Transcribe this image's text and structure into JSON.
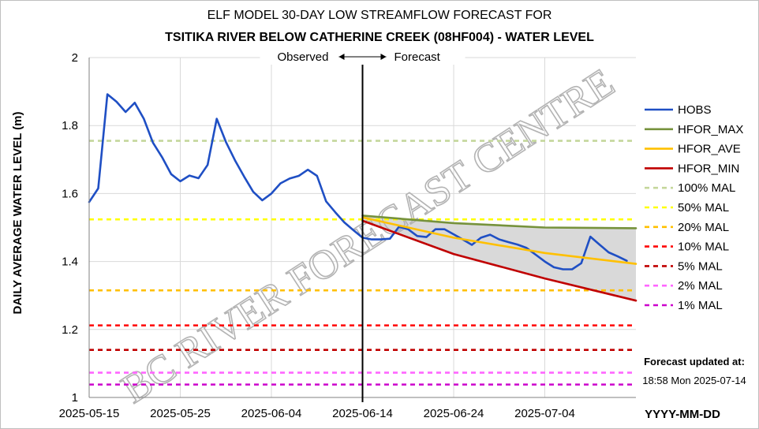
{
  "chart_data": {
    "type": "line",
    "title": "ELF MODEL 30-DAY LOW STREAMFLOW FORECAST FOR",
    "subtitle": "TSITIKA RIVER BELOW CATHERINE CREEK (08HF004) - WATER LEVEL",
    "ylabel": "DAILY AVERAGE WATER LEVEL (m)",
    "xlabel": "YYYY-MM-DD",
    "ylim": [
      1,
      2
    ],
    "yticks": [
      "1",
      "1.2",
      "1.4",
      "1.6",
      "1.8",
      "2"
    ],
    "x_range": [
      "2025-05-15",
      "2025-07-14"
    ],
    "xticks": [
      "2025-05-15",
      "2025-05-25",
      "2025-06-04",
      "2025-06-14",
      "2025-06-24",
      "2025-07-04"
    ],
    "grid": true,
    "legend_position": "right",
    "divider": {
      "date": "2025-06-14",
      "left_label": "Observed",
      "right_label": "Forecast"
    },
    "forecast_note": {
      "label": "Forecast updated at:",
      "time": "18:58 Mon 2025-07-14"
    },
    "watermark": "BC RIVER FORECAST CENTRE",
    "band": {
      "between": [
        "HFOR_MAX",
        "HFOR_MIN"
      ],
      "color": "#d9d9d9"
    },
    "series": [
      {
        "name": "HOBS",
        "color": "#1f4fc4",
        "dash": false,
        "width": 2.6,
        "points": [
          [
            "2025-05-15",
            1.575
          ],
          [
            "2025-05-16",
            1.615
          ],
          [
            "2025-05-17",
            1.892
          ],
          [
            "2025-05-18",
            1.87
          ],
          [
            "2025-05-19",
            1.84
          ],
          [
            "2025-05-20",
            1.867
          ],
          [
            "2025-05-21",
            1.82
          ],
          [
            "2025-05-22",
            1.75
          ],
          [
            "2025-05-23",
            1.707
          ],
          [
            "2025-05-24",
            1.657
          ],
          [
            "2025-05-25",
            1.636
          ],
          [
            "2025-05-26",
            1.653
          ],
          [
            "2025-05-27",
            1.645
          ],
          [
            "2025-05-28",
            1.684
          ],
          [
            "2025-05-29",
            1.82
          ],
          [
            "2025-05-30",
            1.752
          ],
          [
            "2025-05-31",
            1.698
          ],
          [
            "2025-06-01",
            1.65
          ],
          [
            "2025-06-02",
            1.605
          ],
          [
            "2025-06-03",
            1.58
          ],
          [
            "2025-06-04",
            1.6
          ],
          [
            "2025-06-05",
            1.63
          ],
          [
            "2025-06-06",
            1.644
          ],
          [
            "2025-06-07",
            1.652
          ],
          [
            "2025-06-08",
            1.67
          ],
          [
            "2025-06-09",
            1.652
          ],
          [
            "2025-06-10",
            1.577
          ],
          [
            "2025-06-11",
            1.545
          ],
          [
            "2025-06-12",
            1.515
          ],
          [
            "2025-06-13",
            1.492
          ],
          [
            "2025-06-14",
            1.47
          ],
          [
            "2025-06-15",
            1.465
          ],
          [
            "2025-06-16",
            1.465
          ],
          [
            "2025-06-17",
            1.467
          ],
          [
            "2025-06-18",
            1.502
          ],
          [
            "2025-06-19",
            1.495
          ],
          [
            "2025-06-20",
            1.475
          ],
          [
            "2025-06-21",
            1.472
          ],
          [
            "2025-06-22",
            1.495
          ],
          [
            "2025-06-23",
            1.495
          ],
          [
            "2025-06-24",
            1.48
          ],
          [
            "2025-06-25",
            1.465
          ],
          [
            "2025-06-26",
            1.449
          ],
          [
            "2025-06-27",
            1.47
          ],
          [
            "2025-06-28",
            1.479
          ],
          [
            "2025-06-29",
            1.465
          ],
          [
            "2025-06-30",
            1.457
          ],
          [
            "2025-07-01",
            1.45
          ],
          [
            "2025-07-02",
            1.44
          ],
          [
            "2025-07-03",
            1.42
          ],
          [
            "2025-07-04",
            1.4
          ],
          [
            "2025-07-05",
            1.383
          ],
          [
            "2025-07-06",
            1.377
          ],
          [
            "2025-07-07",
            1.377
          ],
          [
            "2025-07-08",
            1.395
          ],
          [
            "2025-07-09",
            1.473
          ],
          [
            "2025-07-10",
            1.45
          ],
          [
            "2025-07-11",
            1.427
          ],
          [
            "2025-07-12",
            1.415
          ],
          [
            "2025-07-13",
            1.402
          ]
        ]
      },
      {
        "name": "HFOR_MAX",
        "color": "#76923c",
        "dash": false,
        "width": 2.6,
        "points": [
          [
            "2025-06-14",
            1.535
          ],
          [
            "2025-06-24",
            1.513
          ],
          [
            "2025-07-04",
            1.5
          ],
          [
            "2025-07-14",
            1.498
          ]
        ]
      },
      {
        "name": "HFOR_AVE",
        "color": "#ffc000",
        "dash": false,
        "width": 2.6,
        "points": [
          [
            "2025-06-14",
            1.53
          ],
          [
            "2025-06-24",
            1.47
          ],
          [
            "2025-07-04",
            1.425
          ],
          [
            "2025-07-14",
            1.393
          ]
        ]
      },
      {
        "name": "HFOR_MIN",
        "color": "#c00000",
        "dash": false,
        "width": 2.6,
        "points": [
          [
            "2025-06-14",
            1.52
          ],
          [
            "2025-06-24",
            1.422
          ],
          [
            "2025-07-04",
            1.35
          ],
          [
            "2025-07-14",
            1.285
          ]
        ]
      },
      {
        "name": "100% MAL",
        "color": "#c4d79b",
        "dash": true,
        "width": 2.6,
        "value": 1.755
      },
      {
        "name": "50% MAL",
        "color": "#ffff00",
        "dash": true,
        "width": 2.6,
        "value": 1.524
      },
      {
        "name": "20% MAL",
        "color": "#ffc000",
        "dash": true,
        "width": 2.6,
        "value": 1.315
      },
      {
        "name": "10% MAL",
        "color": "#ff0000",
        "dash": true,
        "width": 2.6,
        "value": 1.212
      },
      {
        "name": "5% MAL",
        "color": "#c00000",
        "dash": true,
        "width": 2.6,
        "value": 1.14
      },
      {
        "name": "2% MAL",
        "color": "#ff66ff",
        "dash": true,
        "width": 2.6,
        "value": 1.073
      },
      {
        "name": "1% MAL",
        "color": "#cc00cc",
        "dash": true,
        "width": 2.6,
        "value": 1.038
      }
    ]
  }
}
